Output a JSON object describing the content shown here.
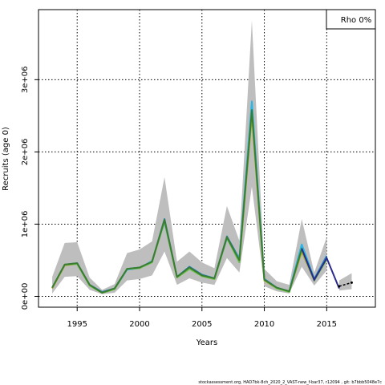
{
  "chart_data": {
    "type": "line",
    "xlabel": "Years",
    "ylabel": "Recruits (age 0)",
    "xlim": [
      1991.9,
      2018.9
    ],
    "ylim": [
      -150000,
      3970000
    ],
    "x_ticks": [
      1995,
      2000,
      2005,
      2010,
      2015
    ],
    "y_ticks": [
      {
        "value": 0,
        "label": "0e+00"
      },
      {
        "value": 1000000,
        "label": "1e+06"
      },
      {
        "value": 2000000,
        "label": "2e+06"
      },
      {
        "value": 3000000,
        "label": "3e+06"
      }
    ],
    "grid": true,
    "legend": {
      "position": "top-right",
      "label": "Rho 0%"
    },
    "years": [
      1993,
      1994,
      1995,
      1996,
      1997,
      1998,
      1999,
      2000,
      2001,
      2002,
      2003,
      2004,
      2005,
      2006,
      2007,
      2008,
      2009,
      2010,
      2011,
      2012,
      2013,
      2014,
      2015
    ],
    "ci_upper": [
      270000,
      740000,
      750000,
      260000,
      90000,
      170000,
      600000,
      650000,
      760000,
      1650000,
      480000,
      620000,
      470000,
      390000,
      1250000,
      770000,
      3820000,
      380000,
      210000,
      160000,
      1070000,
      330000,
      820000
    ],
    "ci_lower": [
      40000,
      270000,
      280000,
      90000,
      30000,
      50000,
      220000,
      240000,
      290000,
      620000,
      160000,
      250000,
      190000,
      160000,
      530000,
      330000,
      1520000,
      140000,
      70000,
      40000,
      410000,
      150000,
      360000
    ],
    "series": [
      {
        "color": "#1f77b4",
        "values": [
          120000,
          440000,
          460000,
          160000,
          60000,
          110000,
          380000,
          400000,
          480000,
          1070000,
          270000,
          410000,
          300000,
          250000,
          830000,
          520000,
          2620000,
          240000,
          120000,
          70000,
          710000,
          240000,
          560000
        ]
      },
      {
        "color": "#29b6e8",
        "values": [
          120000,
          430000,
          450000,
          150000,
          50000,
          100000,
          370000,
          390000,
          490000,
          1030000,
          270000,
          390000,
          290000,
          250000,
          800000,
          520000,
          2700000,
          230000,
          120000,
          70000,
          720000,
          240000,
          540000
        ]
      },
      {
        "color": "#b8a816",
        "values": [
          110000,
          430000,
          450000,
          150000,
          50000,
          100000,
          380000,
          390000,
          480000,
          1050000,
          260000,
          390000,
          280000,
          240000,
          820000,
          480000,
          2500000,
          220000,
          110000,
          70000,
          620000,
          220000,
          520000
        ]
      },
      {
        "color": "#6cc24a",
        "values": [
          120000,
          440000,
          450000,
          150000,
          50000,
          100000,
          380000,
          390000,
          470000,
          1040000,
          260000,
          380000,
          280000,
          240000,
          810000,
          470000,
          2560000,
          230000,
          110000,
          60000,
          650000,
          220000,
          510000
        ]
      },
      {
        "color": "#3a7d32",
        "values": [
          120000,
          440000,
          460000,
          160000,
          50000,
          110000,
          380000,
          400000,
          480000,
          1060000,
          270000,
          400000,
          290000,
          250000,
          820000,
          500000,
          2580000,
          230000,
          120000,
          70000,
          660000,
          230000,
          530000
        ]
      }
    ],
    "terminal_segment": {
      "color": "#2b2b8f",
      "x": [
        2013,
        2014,
        2015,
        2016
      ],
      "y": [
        660000,
        230000,
        530000,
        110000
      ]
    },
    "forecast": {
      "color": "#000000",
      "x": [
        2016,
        2017
      ],
      "y": [
        140000,
        190000
      ],
      "ci_upper": [
        220000,
        320000
      ],
      "ci_lower": [
        80000,
        100000
      ]
    }
  },
  "footer": "stockassessment.org, HAD7bk-8ch_2020_2_VAST-new_f-bar37, r12094 , git: b7bbb5048e7c"
}
